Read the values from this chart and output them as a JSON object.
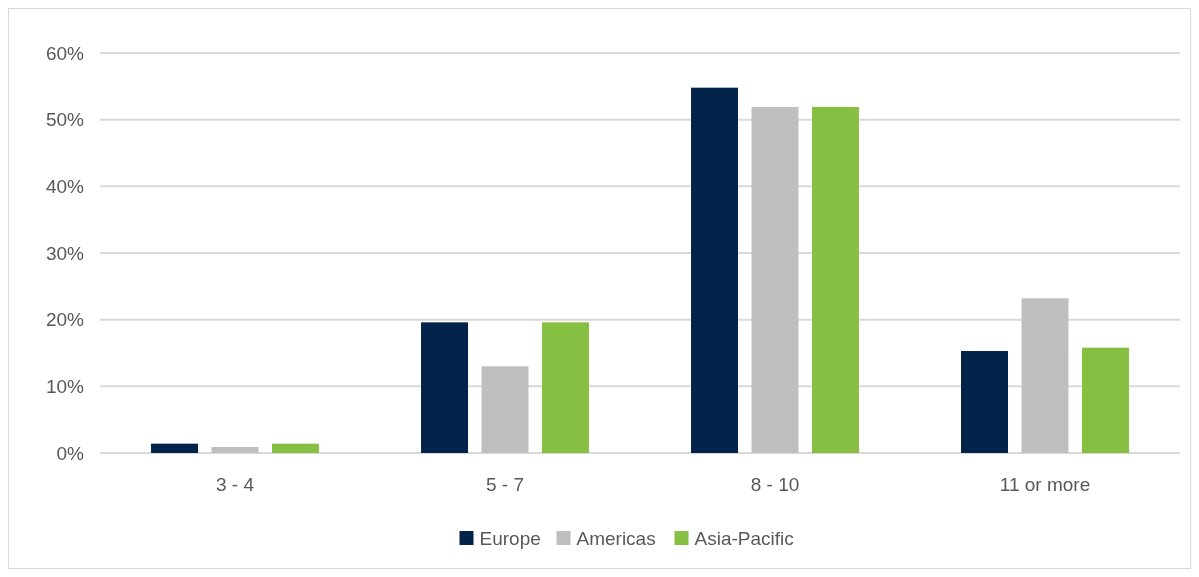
{
  "chart_data": {
    "type": "bar",
    "categories": [
      "3 - 4",
      "5 - 7",
      "8 - 10",
      "11 or more"
    ],
    "series": [
      {
        "name": "Europe",
        "color": "#03234b",
        "values": [
          1.4,
          19.6,
          54.8,
          15.3
        ]
      },
      {
        "name": "Americas",
        "color": "#bfbfbf",
        "values": [
          0.9,
          13.0,
          51.9,
          23.2
        ]
      },
      {
        "name": "Asia-Pacific",
        "color": "#86bf42",
        "values": [
          1.4,
          19.6,
          51.9,
          15.8
        ]
      }
    ],
    "ylim": [
      0,
      60
    ],
    "yticks": [
      {
        "value": 0,
        "label": "0%"
      },
      {
        "value": 10,
        "label": "10%"
      },
      {
        "value": 20,
        "label": "20%"
      },
      {
        "value": 30,
        "label": "30%"
      },
      {
        "value": 40,
        "label": "40%"
      },
      {
        "value": 50,
        "label": "50%"
      },
      {
        "value": 60,
        "label": "60%"
      }
    ],
    "grid": "y",
    "legend": "bottom"
  }
}
